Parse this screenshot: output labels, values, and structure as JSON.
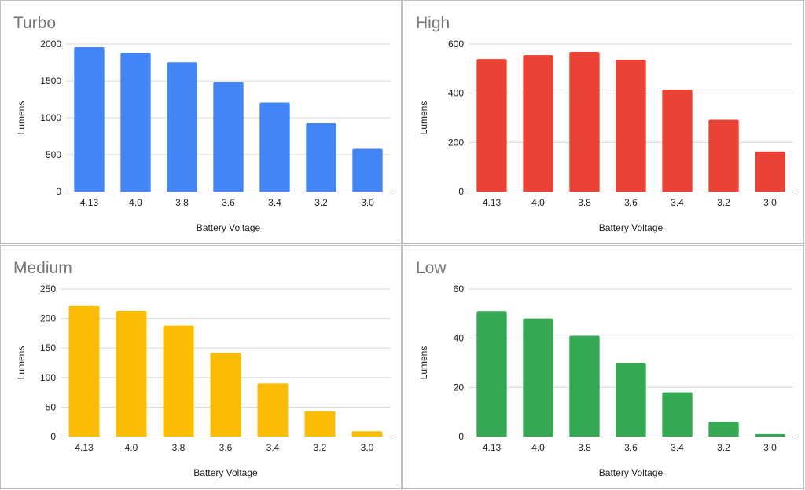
{
  "chart_data": [
    {
      "type": "bar",
      "title": "Turbo",
      "xlabel": "Battery Voltage",
      "ylabel": "Lumens",
      "categories": [
        "4.13",
        "4.0",
        "3.8",
        "3.6",
        "3.4",
        "3.2",
        "3.0"
      ],
      "values": [
        1957,
        1879,
        1752,
        1481,
        1208,
        925,
        580
      ],
      "ylim": [
        0,
        2000
      ],
      "yticks": [
        "0",
        "500",
        "1000",
        "1500",
        "2000"
      ],
      "color": "#4285f4",
      "grid": true
    },
    {
      "type": "bar",
      "title": "High",
      "xlabel": "Battery Voltage",
      "ylabel": "Lumens",
      "categories": [
        "4.13",
        "4.0",
        "3.8",
        "3.6",
        "3.4",
        "3.2",
        "3.0"
      ],
      "values": [
        539,
        555,
        568,
        536,
        415,
        292,
        163
      ],
      "ylim": [
        0,
        600
      ],
      "yticks": [
        "0",
        "200",
        "400",
        "600"
      ],
      "color": "#ea4335",
      "grid": true
    },
    {
      "type": "bar",
      "title": "Medium",
      "xlabel": "Battery Voltage",
      "ylabel": "Lumens",
      "categories": [
        "4.13",
        "4.0",
        "3.8",
        "3.6",
        "3.4",
        "3.2",
        "3.0"
      ],
      "values": [
        221,
        213,
        188,
        142,
        90,
        43,
        9
      ],
      "ylim": [
        0,
        250
      ],
      "yticks": [
        "0",
        "50",
        "100",
        "150",
        "200",
        "250"
      ],
      "color": "#fbbc04",
      "grid": true
    },
    {
      "type": "bar",
      "title": "Low",
      "xlabel": "Battery Voltage",
      "ylabel": "Lumens",
      "categories": [
        "4.13",
        "4.0",
        "3.8",
        "3.6",
        "3.4",
        "3.2",
        "3.0"
      ],
      "values": [
        51,
        48,
        41,
        30,
        18,
        6,
        1
      ],
      "ylim": [
        0,
        60
      ],
      "yticks": [
        "0",
        "20",
        "40",
        "60"
      ],
      "color": "#34a853",
      "grid": true
    }
  ]
}
